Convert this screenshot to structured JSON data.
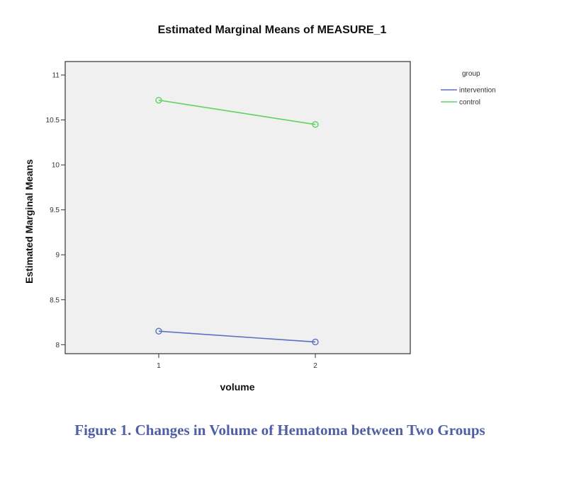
{
  "caption": "Figure 1. Changes in Volume of Hematoma between Two Groups",
  "chart_data": {
    "type": "line",
    "title": "Estimated Marginal Means of MEASURE_1",
    "xlabel": "volume",
    "ylabel": "Estimated Marginal Means",
    "categories": [
      "1",
      "2"
    ],
    "ylim": [
      7.9,
      11.15
    ],
    "yticks": [
      8,
      8.5,
      9,
      9.5,
      10,
      10.5,
      11
    ],
    "ytick_labels": [
      "8",
      "8.5",
      "9",
      "9.5",
      "10",
      "10.5",
      "11"
    ],
    "grid": false,
    "legend_title": "group",
    "legend_position": "right",
    "series": [
      {
        "name": "intervention",
        "values": [
          8.15,
          8.03
        ],
        "color": "#5a6fc0"
      },
      {
        "name": "control",
        "values": [
          10.72,
          10.45
        ],
        "color": "#5fd35f"
      }
    ],
    "plot_background": "#f0f0f0"
  }
}
